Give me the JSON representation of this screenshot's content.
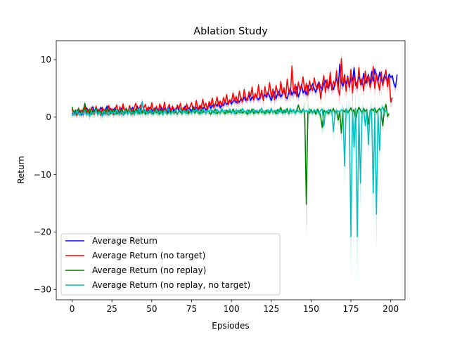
{
  "chart_data": {
    "type": "line",
    "title": "Ablation Study",
    "xlabel": "Epsiodes",
    "ylabel": "Return",
    "xlim": [
      -9.95,
      208.95
    ],
    "ylim": [
      -31.8,
      13.3
    ],
    "xticks": [
      0,
      25,
      50,
      75,
      100,
      125,
      150,
      175,
      200
    ],
    "yticks": [
      -30,
      -20,
      -10,
      0,
      10
    ],
    "ytick_labels": [
      "−30",
      "−20",
      "−10",
      "0",
      "10"
    ],
    "grid": false,
    "legend_position": "lower-left",
    "series": [
      {
        "name": "Average Return",
        "color": "#0000ff",
        "values": [
          0.5,
          0.9,
          0.6,
          1.2,
          0.8,
          1.1,
          0.4,
          1.3,
          0.9,
          1.6,
          1.2,
          0.7,
          1.4,
          1.8,
          1.0,
          1.5,
          1.2,
          0.8,
          1.7,
          1.3,
          0.6,
          1.4,
          1.9,
          1.1,
          1.5,
          0.9,
          1.3,
          1.6,
          1.0,
          1.2,
          0.7,
          1.5,
          1.8,
          1.1,
          1.4,
          0.9,
          1.6,
          1.2,
          1.7,
          0.8,
          1.3,
          1.9,
          1.0,
          1.4,
          2.6,
          1.2,
          0.9,
          1.5,
          1.1,
          1.7,
          1.3,
          0.8,
          1.6,
          1.2,
          1.4,
          1.0,
          1.8,
          1.1,
          1.5,
          1.3,
          0.9,
          1.7,
          1.2,
          1.6,
          1.0,
          1.4,
          1.8,
          1.2,
          1.5,
          0.9,
          1.3,
          1.9,
          1.1,
          1.6,
          1.4,
          1.0,
          1.8,
          1.3,
          1.7,
          1.2,
          1.5,
          2.0,
          1.4,
          1.8,
          1.2,
          1.6,
          2.2,
          1.5,
          2.1,
          1.7,
          2.3,
          1.9,
          2.6,
          1.6,
          2.4,
          2.0,
          2.8,
          2.2,
          2.5,
          2.9,
          2.3,
          2.7,
          3.1,
          2.5,
          2.9,
          2.6,
          3.3,
          2.8,
          3.5,
          2.9,
          3.2,
          3.8,
          2.9,
          3.5,
          3.1,
          3.9,
          3.4,
          3.0,
          3.7,
          4.2,
          3.3,
          3.9,
          3.5,
          4.3,
          3.6,
          2.9,
          3.8,
          4.4,
          3.2,
          4.1,
          4.5,
          3.5,
          4.0,
          4.7,
          3.6,
          3.2,
          4.3,
          5.0,
          3.8,
          4.6,
          4.1,
          5.3,
          3.5,
          4.4,
          5.7,
          4.2,
          4.8,
          3.9,
          5.5,
          4.6,
          5.1,
          5.8,
          4.9,
          4.3,
          5.6,
          6.1,
          5.2,
          4.7,
          5.9,
          6.4,
          5.3,
          5.0,
          6.2,
          5.5,
          4.8,
          5.9,
          6.8,
          5.1,
          9.2,
          6.0,
          5.4,
          6.6,
          5.8,
          7.1,
          5.2,
          6.9,
          6.3,
          8.6,
          5.5,
          6.0,
          7.0,
          6.4,
          5.7,
          7.6,
          5.9,
          6.6,
          7.4,
          5.8,
          7.9,
          6.3,
          8.4,
          7.0,
          6.2,
          7.8,
          6.6,
          5.9,
          7.3,
          6.8,
          6.1,
          7.5,
          6.9,
          7.2,
          5.8,
          5.2,
          7.4
        ]
      },
      {
        "name": "Average Return (no target)",
        "color": "#ff0000",
        "values": [
          1.4,
          0.6,
          1.1,
          0.3,
          1.5,
          0.9,
          1.2,
          0.4,
          1.8,
          0.6,
          1.3,
          0.2,
          1.6,
          1.1,
          0.5,
          1.9,
          0.8,
          1.4,
          0.3,
          1.7,
          1.0,
          1.2,
          0.5,
          2.0,
          0.9,
          1.5,
          0.4,
          1.3,
          2.1,
          0.7,
          1.8,
          0.6,
          2.3,
          1.0,
          1.5,
          0.8,
          2.0,
          1.2,
          0.6,
          1.7,
          2.4,
          0.9,
          1.4,
          2.1,
          0.7,
          1.6,
          2.2,
          1.1,
          1.8,
          0.8,
          2.5,
          1.3,
          1.0,
          1.9,
          0.7,
          2.3,
          1.4,
          1.1,
          2.6,
          0.9,
          1.6,
          2.2,
          1.0,
          1.9,
          1.4,
          0.8,
          2.1,
          1.5,
          2.4,
          1.0,
          1.7,
          1.2,
          2.3,
          0.9,
          1.8,
          2.5,
          1.3,
          1.6,
          2.9,
          1.2,
          2.0,
          1.5,
          3.1,
          1.8,
          2.4,
          1.3,
          2.7,
          2.0,
          3.3,
          1.7,
          2.4,
          3.5,
          2.0,
          2.8,
          1.9,
          3.4,
          2.5,
          3.9,
          2.2,
          3.0,
          2.6,
          4.2,
          2.8,
          3.6,
          2.4,
          4.5,
          3.1,
          2.7,
          4.8,
          3.3,
          2.9,
          4.4,
          3.6,
          5.2,
          3.0,
          4.1,
          3.4,
          5.6,
          3.2,
          4.7,
          2.9,
          5.3,
          3.8,
          4.2,
          6.0,
          3.5,
          4.9,
          3.0,
          5.5,
          4.3,
          3.7,
          6.2,
          4.0,
          5.1,
          3.4,
          6.6,
          4.5,
          3.9,
          8.9,
          4.2,
          5.7,
          3.6,
          6.1,
          4.8,
          5.3,
          7.0,
          4.4,
          5.9,
          3.8,
          6.3,
          5.1,
          4.6,
          6.8,
          5.4,
          4.9,
          6.0,
          3.2,
          5.6,
          7.2,
          4.3,
          6.5,
          5.0,
          7.8,
          4.7,
          6.2,
          5.5,
          8.1,
          4.9,
          3.8,
          10.2,
          5.8,
          7.4,
          4.5,
          6.9,
          5.3,
          8.3,
          4.2,
          7.1,
          6.0,
          5.0,
          8.6,
          5.6,
          6.7,
          4.6,
          8.0,
          5.9,
          7.3,
          5.2,
          6.4,
          8.8,
          5.0,
          7.6,
          6.2,
          4.7,
          7.9,
          5.5,
          6.8,
          8.2,
          5.3,
          7.0,
          2.6,
          3.4
        ]
      },
      {
        "name": "Average Return (no replay)",
        "color": "#008000",
        "values": [
          1.8,
          0.7,
          1.2,
          0.5,
          1.5,
          0.9,
          0.6,
          1.3,
          2.4,
          1.0,
          0.7,
          1.4,
          0.5,
          1.1,
          0.8,
          1.6,
          0.6,
          1.2,
          0.9,
          0.4,
          1.3,
          0.7,
          1.5,
          1.0,
          0.6,
          1.2,
          0.8,
          1.4,
          0.5,
          1.0,
          0.7,
          1.3,
          0.9,
          0.6,
          1.5,
          0.8,
          1.1,
          0.5,
          1.2,
          0.7,
          1.4,
          0.9,
          0.6,
          1.1,
          0.8,
          1.3,
          0.5,
          1.0,
          0.7,
          1.2,
          0.9,
          0.6,
          1.4,
          0.8,
          1.0,
          0.5,
          1.3,
          0.7,
          1.1,
          0.9,
          0.6,
          1.2,
          0.8,
          1.0,
          0.7,
          1.4,
          0.5,
          1.1,
          0.9,
          0.6,
          1.3,
          0.8,
          1.2,
          0.6,
          1.0,
          0.8,
          1.5,
          0.7,
          1.1,
          0.9,
          0.6,
          1.3,
          0.8,
          1.0,
          0.7,
          1.2,
          0.9,
          0.5,
          1.1,
          0.8,
          1.4,
          0.6,
          1.0,
          0.7,
          1.3,
          0.9,
          0.6,
          1.2,
          0.8,
          1.0,
          0.7,
          1.4,
          0.9,
          0.6,
          1.1,
          0.8,
          1.3,
          0.7,
          1.0,
          0.9,
          0.5,
          1.2,
          0.8,
          1.4,
          0.6,
          1.1,
          0.9,
          0.7,
          1.3,
          0.8,
          1.0,
          0.6,
          1.2,
          0.9,
          0.7,
          1.4,
          0.8,
          1.1,
          0.6,
          1.3,
          0.9,
          1.7,
          0.7,
          1.2,
          0.8,
          1.5,
          0.6,
          1.1,
          0.9,
          1.3,
          0.7,
          1.0,
          2.1,
          1.2,
          0.8,
          1.4,
          0.9,
          -15.2,
          1.0,
          0.7,
          1.3,
          0.8,
          1.1,
          0.5,
          1.4,
          0.9,
          0.2,
          -1.8,
          1.2,
          0.8,
          1.0,
          0.6,
          1.3,
          0.9,
          1.5,
          0.7,
          1.1,
          -0.5,
          1.0,
          -2.8,
          1.2,
          0.9,
          1.4,
          0.8,
          1.1,
          1.6,
          0.9,
          1.3,
          -0.6,
          1.0,
          1.7,
          1.2,
          0.8,
          1.5,
          1.0,
          1.3,
          -1.2,
          0.9,
          1.4,
          1.1,
          1.6,
          0.8,
          1.2,
          1.5,
          0.9,
          -1.5,
          1.3,
          2.2,
          0.1,
          0.6
        ]
      },
      {
        "name": "Average Return (no replay, no target)",
        "color": "#00bfbf",
        "values": [
          0.2,
          0.8,
          0.4,
          1.1,
          0.6,
          0.3,
          0.9,
          0.5,
          1.2,
          0.4,
          0.8,
          0.2,
          1.0,
          0.5,
          0.7,
          1.3,
          0.4,
          0.9,
          0.6,
          0.2,
          1.1,
          0.5,
          0.8,
          0.3,
          1.2,
          0.6,
          0.9,
          0.4,
          1.4,
          0.7,
          0.5,
          1.0,
          0.3,
          1.2,
          0.8,
          0.5,
          1.5,
          0.6,
          0.9,
          0.4,
          1.1,
          0.7,
          1.6,
          0.5,
          2.7,
          0.8,
          1.2,
          0.6,
          0.9,
          1.4,
          0.5,
          1.0,
          0.7,
          1.3,
          0.6,
          1.1,
          0.8,
          0.4,
          1.2,
          0.7,
          1.5,
          0.9,
          0.5,
          1.1,
          0.8,
          1.3,
          0.6,
          1.0,
          1.6,
          0.7,
          1.2,
          0.9,
          0.6,
          1.4,
          1.0,
          0.7,
          1.2,
          0.9,
          1.5,
          0.8,
          1.1,
          0.6,
          1.3,
          1.0,
          0.7,
          1.2,
          0.9,
          1.4,
          0.8,
          1.1,
          0.6,
          1.3,
          1.0,
          0.8,
          1.5,
          0.9,
          1.2,
          0.7,
          1.0,
          1.4,
          0.8,
          1.1,
          0.6,
          1.3,
          0.9,
          1.2,
          0.7,
          1.5,
          1.0,
          0.8,
          1.3,
          0.6,
          1.1,
          0.9,
          1.4,
          0.7,
          1.2,
          0.9,
          1.0,
          1.6,
          0.8,
          1.1,
          0.7,
          1.3,
          0.9,
          1.5,
          0.8,
          1.0,
          1.2,
          0.6,
          1.4,
          0.9,
          1.1,
          0.7,
          1.3,
          1.0,
          0.8,
          1.5,
          0.9,
          1.2,
          0.7,
          1.4,
          1.0,
          0.8,
          1.1,
          1.3,
          0.9,
          1.2,
          0.8,
          1.4,
          1.0,
          0.7,
          1.3,
          0.9,
          1.1,
          0.6,
          1.2,
          1.4,
          -1.6,
          1.0,
          0.8,
          1.3,
          0.9,
          1.1,
          -2.5,
          0.7,
          1.2,
          1.0,
          0.8,
          1.3,
          1.1,
          -8.5,
          1.4,
          1.0,
          0.6,
          -20.8,
          1.2,
          -5.2,
          1.5,
          -20.8,
          1.0,
          -11.5,
          0.8,
          1.3,
          -1.5,
          1.1,
          -4.8,
          1.2,
          0.9,
          -13.2,
          1.6,
          -16.9,
          1.0,
          -5.8,
          1.2,
          1.8,
          0.7,
          1.1,
          0.9
        ]
      }
    ]
  }
}
